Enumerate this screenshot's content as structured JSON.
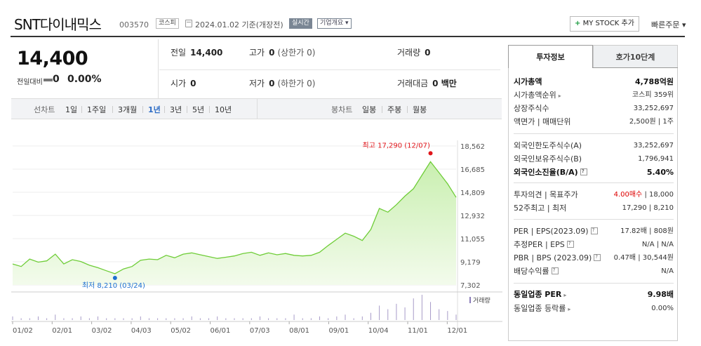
{
  "header": {
    "stock_name": "SNT다이내믹스",
    "stock_code": "003570",
    "market_badge": "코스피",
    "date_text": "2024.01.02 기준(개장전)",
    "realtime_badge": "실시간",
    "company_button": "기업개요 ▾",
    "mystock_plus": "+",
    "mystock_button": "MY STOCK 추가",
    "quick_order": "빠른주문 ▾"
  },
  "price": {
    "current": "14,400",
    "change_label": "전일대비",
    "change_value": "0",
    "change_pct": "0.00%"
  },
  "info": {
    "prev_label": "전일",
    "prev_value": "14,400",
    "high_label": "고가",
    "high_value": "0",
    "high_sub": "(상한가 0)",
    "volume_label": "거래량",
    "volume_value": "0",
    "open_label": "시가",
    "open_value": "0",
    "low_label": "저가",
    "low_value": "0",
    "low_sub": "(하한가 0)",
    "amount_label": "거래대금",
    "amount_value": "0 백만"
  },
  "toolbar": {
    "line_chart_label": "선차트",
    "periods": [
      "1일",
      "1주일",
      "3개월",
      "1년",
      "3년",
      "5년",
      "10년"
    ],
    "active_period": "1년",
    "candle_label": "봉차트",
    "candles": [
      "일봉",
      "주봉",
      "월봉"
    ]
  },
  "chart_data": {
    "type": "area",
    "x": [
      "01/02",
      "01/09",
      "01/16",
      "01/23",
      "01/30",
      "02/06",
      "02/13",
      "02/20",
      "02/27",
      "03/06",
      "03/13",
      "03/20",
      "03/24",
      "03/31",
      "04/07",
      "04/14",
      "04/21",
      "04/28",
      "05/05",
      "05/12",
      "05/19",
      "05/26",
      "06/02",
      "06/09",
      "06/16",
      "06/23",
      "06/30",
      "07/07",
      "07/14",
      "07/21",
      "07/28",
      "08/04",
      "08/11",
      "08/18",
      "08/25",
      "09/01",
      "09/08",
      "09/15",
      "09/22",
      "09/29",
      "10/06",
      "10/13",
      "10/20",
      "10/27",
      "11/03",
      "11/10",
      "11/17",
      "11/24",
      "12/01",
      "12/07",
      "12/14",
      "12/21",
      "12/28"
    ],
    "values": [
      9000,
      8800,
      9400,
      9150,
      9250,
      9800,
      9000,
      9350,
      9200,
      8900,
      8700,
      8450,
      8210,
      8600,
      8800,
      9300,
      9400,
      9350,
      9700,
      9500,
      9800,
      9900,
      9750,
      9600,
      9450,
      9550,
      9650,
      9850,
      9950,
      9700,
      9900,
      9750,
      9850,
      9700,
      9650,
      9700,
      9950,
      10500,
      11000,
      11500,
      11250,
      10900,
      11800,
      13500,
      13200,
      13800,
      14500,
      15100,
      16200,
      17290,
      16400,
      15500,
      14400
    ],
    "y_ticks": [
      "18,562",
      "16,685",
      "14,809",
      "12,932",
      "11,055",
      "9,179",
      "7,302"
    ],
    "ylim": [
      7302,
      18562
    ],
    "x_ticks": [
      "01/02",
      "02/01",
      "03/02",
      "04/03",
      "05/02",
      "06/01",
      "07/03",
      "08/01",
      "09/01",
      "10/04",
      "11/01",
      "12/01"
    ],
    "max_label": "최고 17,290 (12/07)",
    "min_label": "최저 8,210 (03/24)",
    "volume_label": "거래량",
    "colors": {
      "line": "#6fcd38",
      "fill_top": "#c9efb0",
      "fill_bottom": "#f3fbec",
      "max": "#e0151a",
      "min": "#1d6fd1"
    }
  },
  "right_panel": {
    "tab_invest": "투자정보",
    "tab_order": "호가10단계",
    "market_cap_label": "시가총액",
    "market_cap_value": "4,788억원",
    "cap_rank_label": "시가총액순위",
    "cap_rank_value": "코스피 359위",
    "shares_label": "상장주식수",
    "shares_value": "33,252,697",
    "par_label": "액면가 | 매매단위",
    "par_value": "2,500원 | 1주",
    "foreign_limit_label": "외국인한도주식수(A)",
    "foreign_limit_value": "33,252,697",
    "foreign_hold_label": "외국인보유주식수(B)",
    "foreign_hold_value": "1,796,941",
    "foreign_ratio_label": "외국인소진율(B/A)",
    "foreign_ratio_value": "5.40%",
    "opinion_label": "투자의견 | 목표주가",
    "opinion_value": "4.00매수",
    "target_value": "18,000",
    "week52_label": "52주최고 | 최저",
    "week52_value": "17,290 | 8,210",
    "per_label": "PER | EPS(2023.09)",
    "per_value": "17.82배 | 808원",
    "est_label": "추정PER | EPS",
    "est_value": "N/A | N/A",
    "pbr_label": "PBR | BPS (2023.09)",
    "pbr_value": "0.47배 | 30,544원",
    "div_label": "배당수익률",
    "div_value": "N/A",
    "sector_per_label": "동일업종 PER",
    "sector_per_value": "9.98배",
    "sector_rate_label": "동일업종 등락률",
    "sector_rate_value": "0.00%"
  }
}
